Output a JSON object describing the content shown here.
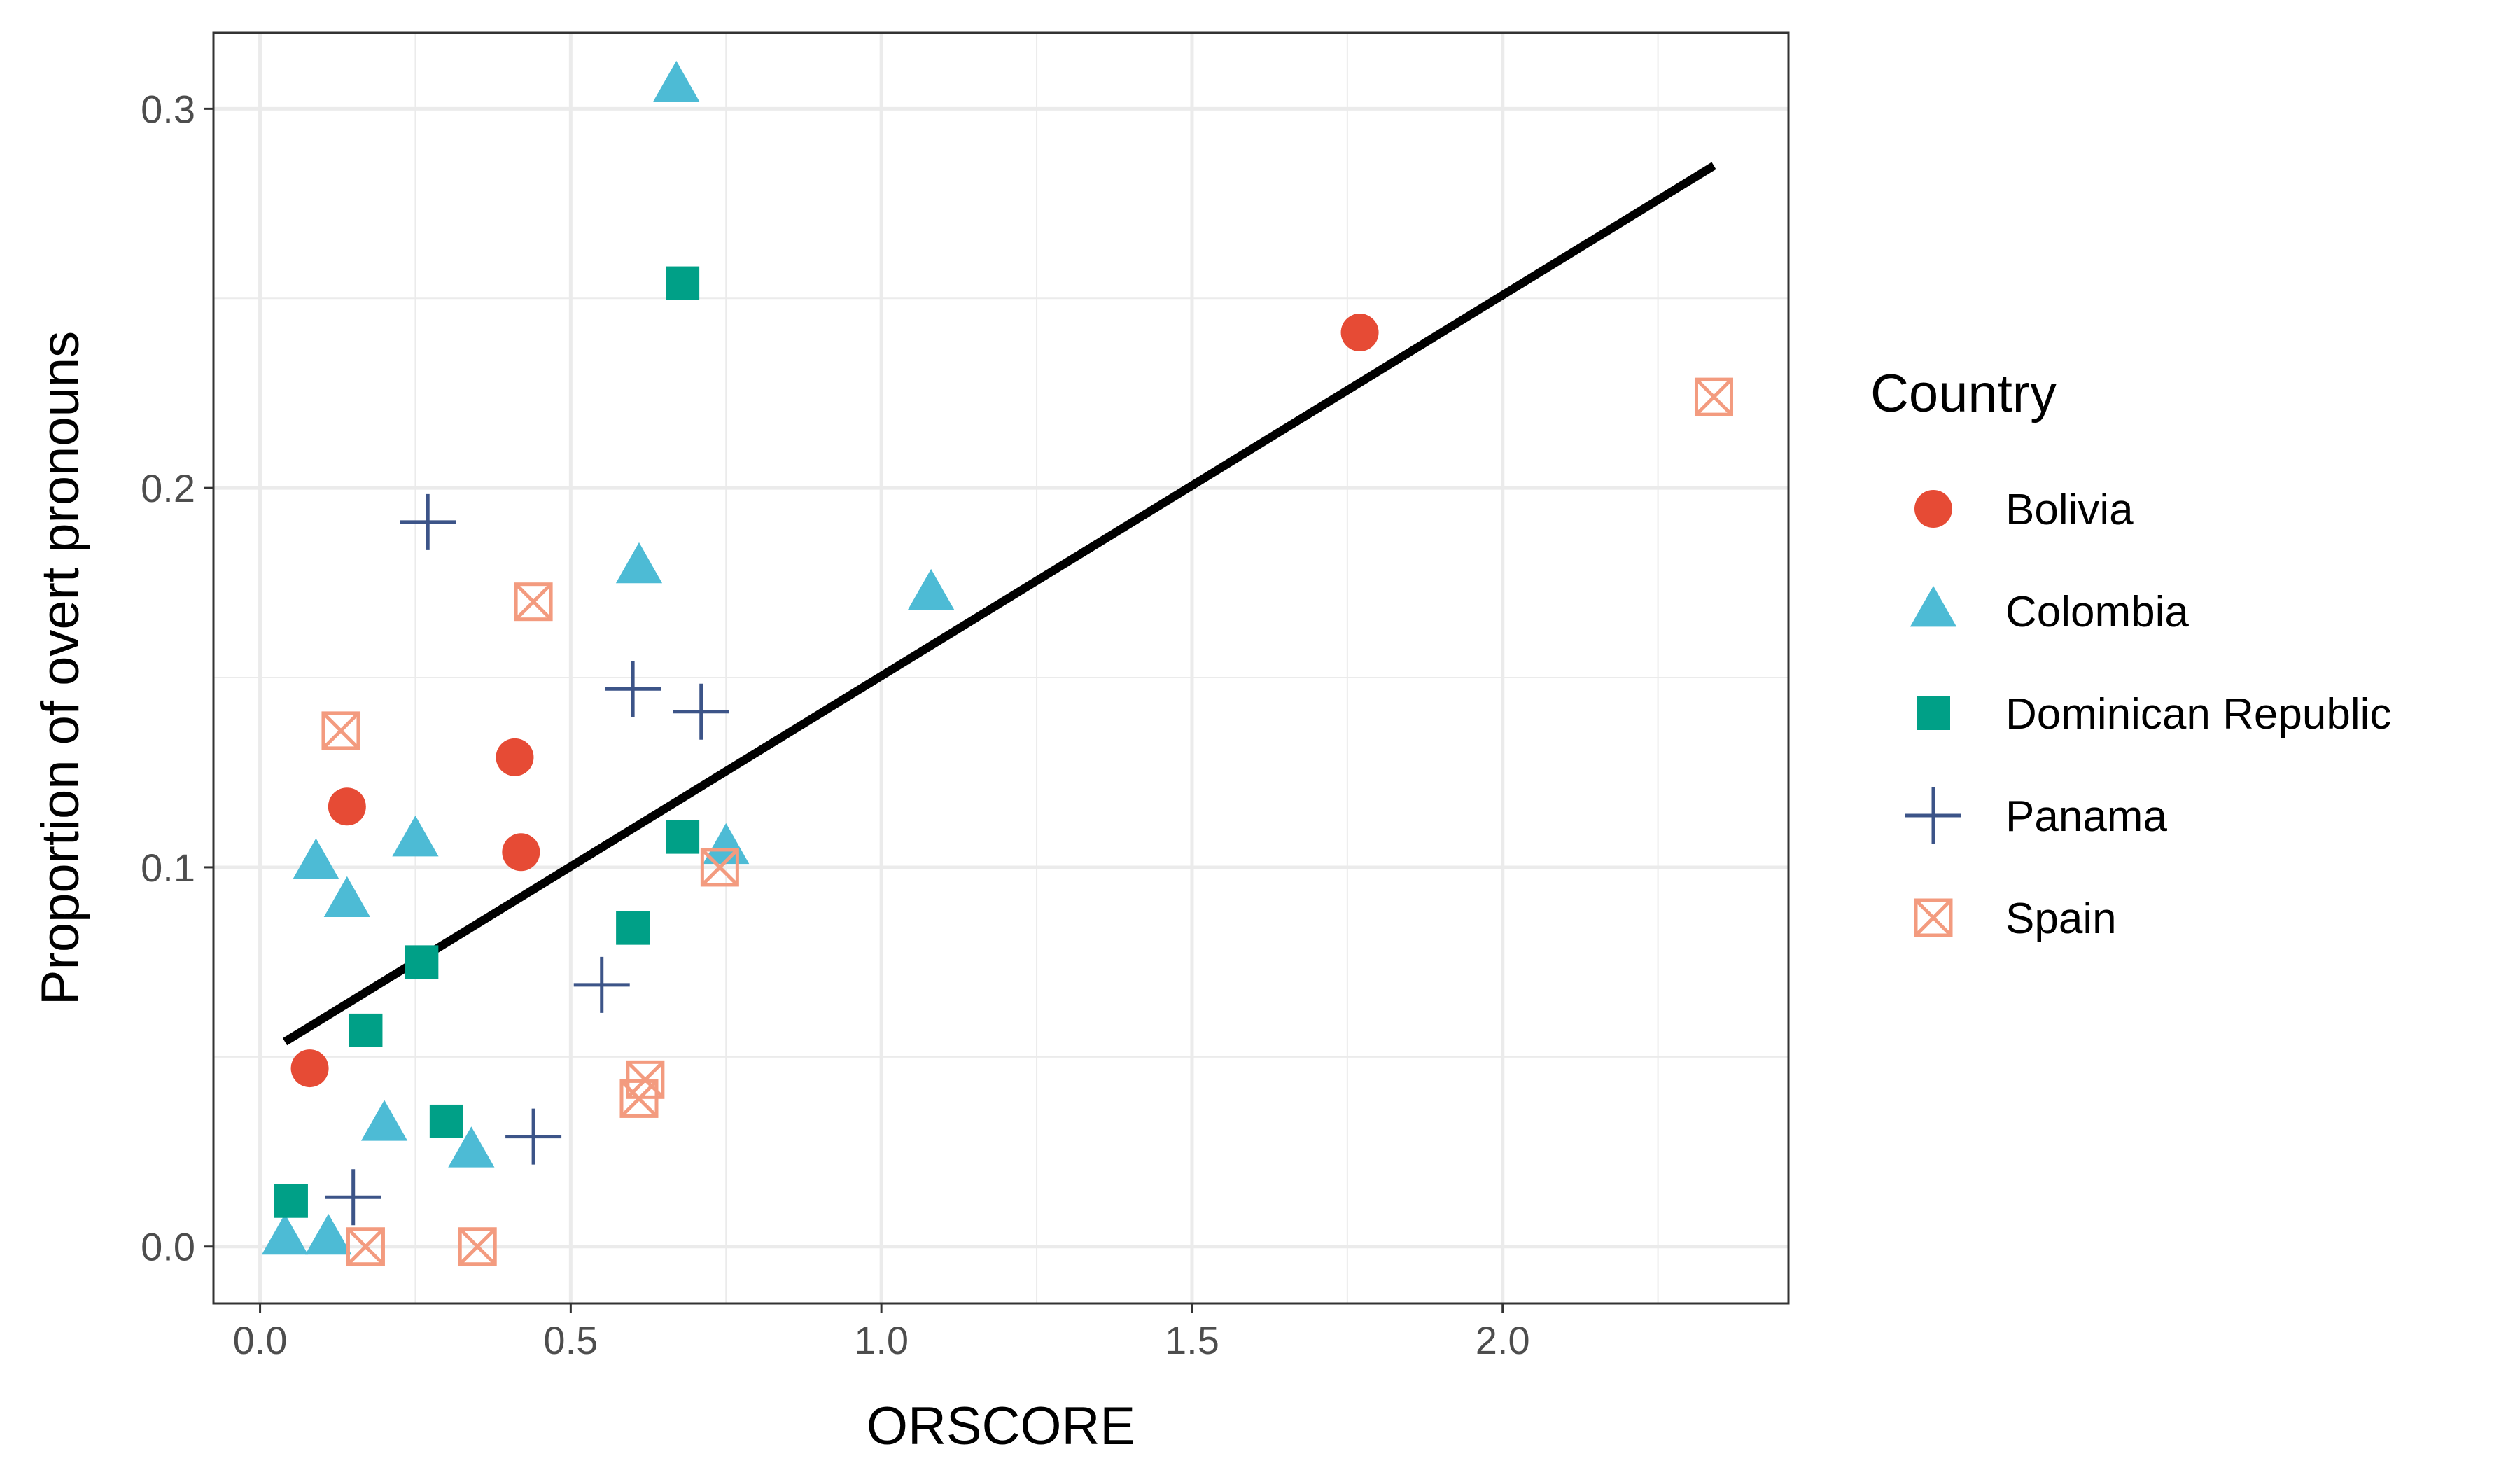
{
  "chart_data": {
    "type": "scatter",
    "title": "",
    "xlabel": "ORSCORE",
    "ylabel": "Proportion of overt pronouns",
    "xlim": [
      -0.075,
      2.46
    ],
    "ylim": [
      -0.015,
      0.32
    ],
    "xticks": [
      0.0,
      0.5,
      1.0,
      1.5,
      2.0
    ],
    "xtick_labels": [
      "0.0",
      "0.5",
      "1.0",
      "1.5",
      "2.0"
    ],
    "yticks": [
      0.0,
      0.1,
      0.2,
      0.3
    ],
    "ytick_labels": [
      "0.0",
      "0.1",
      "0.2",
      "0.3"
    ],
    "grid": true,
    "legend": {
      "title": "Country",
      "position": "right"
    },
    "series": [
      {
        "name": "Bolivia",
        "marker": "circle",
        "color": "#E64B35",
        "points": [
          {
            "x": 0.08,
            "y": 0.047
          },
          {
            "x": 0.14,
            "y": 0.116
          },
          {
            "x": 0.41,
            "y": 0.129
          },
          {
            "x": 0.42,
            "y": 0.104
          },
          {
            "x": 1.77,
            "y": 0.241
          }
        ]
      },
      {
        "name": "Colombia",
        "marker": "triangle",
        "color": "#4DBBD5",
        "points": [
          {
            "x": 0.04,
            "y": 0.002
          },
          {
            "x": 0.11,
            "y": 0.002
          },
          {
            "x": 0.09,
            "y": 0.101
          },
          {
            "x": 0.14,
            "y": 0.091
          },
          {
            "x": 0.2,
            "y": 0.032
          },
          {
            "x": 0.25,
            "y": 0.107
          },
          {
            "x": 0.34,
            "y": 0.025
          },
          {
            "x": 0.61,
            "y": 0.179
          },
          {
            "x": 0.67,
            "y": 0.306
          },
          {
            "x": 0.75,
            "y": 0.105
          },
          {
            "x": 1.08,
            "y": 0.172
          }
        ]
      },
      {
        "name": "Dominican Republic",
        "marker": "square",
        "color": "#00A087",
        "points": [
          {
            "x": 0.05,
            "y": 0.012
          },
          {
            "x": 0.17,
            "y": 0.057
          },
          {
            "x": 0.26,
            "y": 0.075
          },
          {
            "x": 0.3,
            "y": 0.033
          },
          {
            "x": 0.6,
            "y": 0.084
          },
          {
            "x": 0.68,
            "y": 0.254
          },
          {
            "x": 0.68,
            "y": 0.108
          }
        ]
      },
      {
        "name": "Panama",
        "marker": "plus",
        "color": "#3C5488",
        "points": [
          {
            "x": 0.15,
            "y": 0.013
          },
          {
            "x": 0.27,
            "y": 0.191
          },
          {
            "x": 0.44,
            "y": 0.029
          },
          {
            "x": 0.55,
            "y": 0.069
          },
          {
            "x": 0.6,
            "y": 0.147
          },
          {
            "x": 0.71,
            "y": 0.141
          }
        ]
      },
      {
        "name": "Spain",
        "marker": "square-cross",
        "color": "#F39B7F",
        "points": [
          {
            "x": 0.13,
            "y": 0.136
          },
          {
            "x": 0.17,
            "y": 0.0
          },
          {
            "x": 0.35,
            "y": 0.0
          },
          {
            "x": 0.44,
            "y": 0.17
          },
          {
            "x": 0.61,
            "y": 0.039
          },
          {
            "x": 0.62,
            "y": 0.044
          },
          {
            "x": 0.74,
            "y": 0.1
          },
          {
            "x": 2.34,
            "y": 0.224
          }
        ]
      }
    ],
    "trend_line": {
      "color": "#000000",
      "from": {
        "x": 0.04,
        "y": 0.054
      },
      "to": {
        "x": 2.34,
        "y": 0.285
      }
    }
  }
}
